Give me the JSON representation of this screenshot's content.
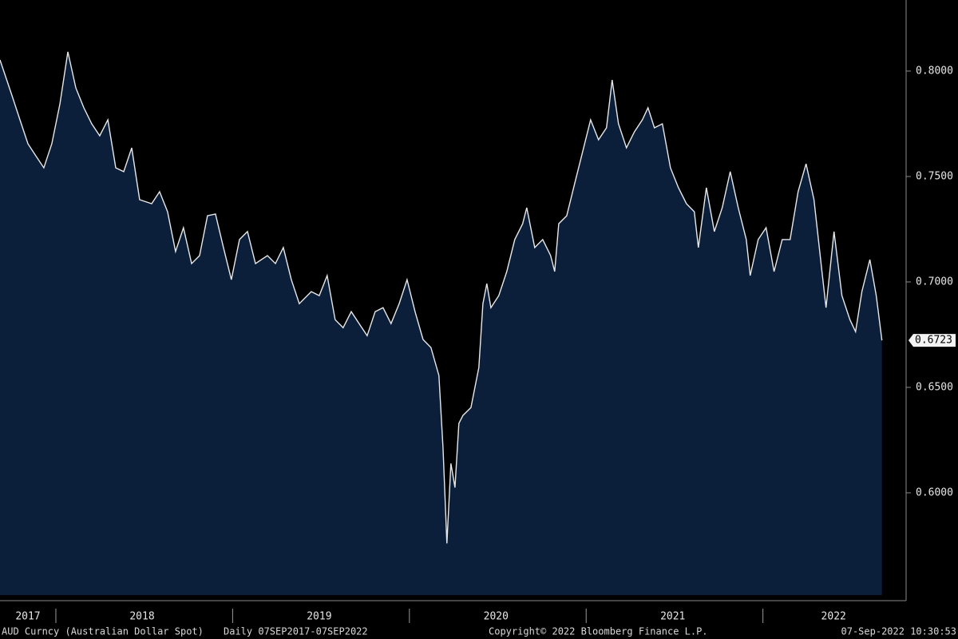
{
  "chart_data": {
    "type": "area",
    "x": [
      2017.684,
      2017.752,
      2017.797,
      2017.842,
      2017.887,
      2017.932,
      2017.977,
      2018.023,
      2018.068,
      2018.113,
      2018.158,
      2018.203,
      2018.248,
      2018.294,
      2018.339,
      2018.384,
      2018.429,
      2018.474,
      2018.542,
      2018.587,
      2018.632,
      2018.677,
      2018.722,
      2018.768,
      2018.813,
      2018.858,
      2018.903,
      2018.948,
      2018.993,
      2019.039,
      2019.084,
      2019.129,
      2019.197,
      2019.242,
      2019.287,
      2019.332,
      2019.377,
      2019.445,
      2019.49,
      2019.535,
      2019.58,
      2019.625,
      2019.671,
      2019.716,
      2019.761,
      2019.806,
      2019.851,
      2019.896,
      2019.942,
      2019.987,
      2020.032,
      2020.077,
      2020.122,
      2020.167,
      2020.19,
      2020.212,
      2020.235,
      2020.258,
      2020.28,
      2020.303,
      2020.348,
      2020.393,
      2020.416,
      2020.438,
      2020.461,
      2020.506,
      2020.551,
      2020.596,
      2020.641,
      2020.664,
      2020.709,
      2020.754,
      2020.799,
      2020.822,
      2020.845,
      2020.89,
      2020.935,
      2020.98,
      2021.025,
      2021.07,
      2021.115,
      2021.147,
      2021.183,
      2021.228,
      2021.273,
      2021.318,
      2021.35,
      2021.386,
      2021.431,
      2021.477,
      2021.522,
      2021.567,
      2021.612,
      2021.635,
      2021.68,
      2021.725,
      2021.77,
      2021.815,
      2021.86,
      2021.906,
      2021.928,
      2021.973,
      2022.018,
      2022.063,
      2022.109,
      2022.154,
      2022.199,
      2022.244,
      2022.289,
      2022.334,
      2022.357,
      2022.402,
      2022.447,
      2022.492,
      2022.524,
      2022.56,
      2022.605,
      2022.641,
      2022.673
    ],
    "values": [
      0.8053,
      0.7883,
      0.7769,
      0.7655,
      0.7598,
      0.7541,
      0.7655,
      0.7845,
      0.8091,
      0.792,
      0.7826,
      0.775,
      0.7693,
      0.7769,
      0.7541,
      0.7523,
      0.7636,
      0.739,
      0.7371,
      0.7428,
      0.7333,
      0.7144,
      0.7257,
      0.7087,
      0.7125,
      0.7314,
      0.7322,
      0.7163,
      0.7011,
      0.7201,
      0.7239,
      0.7087,
      0.7125,
      0.7087,
      0.7163,
      0.7011,
      0.6897,
      0.6954,
      0.6935,
      0.703,
      0.6821,
      0.6783,
      0.6859,
      0.6802,
      0.6745,
      0.6859,
      0.6878,
      0.6802,
      0.6897,
      0.7011,
      0.6859,
      0.6727,
      0.6689,
      0.6556,
      0.6215,
      0.576,
      0.6139,
      0.6025,
      0.6329,
      0.6367,
      0.6404,
      0.6594,
      0.6897,
      0.6992,
      0.6878,
      0.6935,
      0.7049,
      0.7201,
      0.7276,
      0.7352,
      0.7163,
      0.7201,
      0.7125,
      0.7049,
      0.7276,
      0.7314,
      0.7466,
      0.7617,
      0.7769,
      0.7674,
      0.7731,
      0.7958,
      0.775,
      0.7636,
      0.7712,
      0.7769,
      0.7826,
      0.7731,
      0.775,
      0.7541,
      0.7447,
      0.7371,
      0.7333,
      0.7163,
      0.7447,
      0.7239,
      0.7352,
      0.7523,
      0.7352,
      0.7201,
      0.703,
      0.7201,
      0.7257,
      0.7049,
      0.7201,
      0.7201,
      0.7428,
      0.756,
      0.739,
      0.7049,
      0.6878,
      0.7239,
      0.6935,
      0.6821,
      0.6764,
      0.6954,
      0.7106,
      0.6935,
      0.6723
    ],
    "last_label": "0.6723",
    "color": "#e8e8e8",
    "fill": "#0b1e3a",
    "xlim": [
      2017.684,
      2022.81
    ],
    "ylim": [
      0.5515,
      0.8337
    ],
    "yticks": [
      {
        "value": 0.6,
        "label": "0.6000"
      },
      {
        "value": 0.65,
        "label": "0.6500"
      },
      {
        "value": 0.7,
        "label": "0.7000"
      },
      {
        "value": 0.75,
        "label": "0.7500"
      },
      {
        "value": 0.8,
        "label": "0.8000"
      }
    ],
    "xticks": [
      {
        "value": 2017.842,
        "label": "2017"
      },
      {
        "value": 2018.488,
        "label": "2018"
      },
      {
        "value": 2019.49,
        "label": "2019"
      },
      {
        "value": 2020.49,
        "label": "2020"
      },
      {
        "value": 2021.49,
        "label": "2021"
      },
      {
        "value": 2022.4,
        "label": "2022"
      }
    ],
    "xdividers": [
      2018,
      2019,
      2020,
      2021,
      2022
    ],
    "footer": {
      "security": "AUD Curncy (Australian Dollar Spot)",
      "range": "Daily 07SEP2017-07SEP2022",
      "copyright": "Copyright© 2022 Bloomberg Finance L.P.",
      "timestamp": "07-Sep-2022 10:30:53"
    }
  }
}
